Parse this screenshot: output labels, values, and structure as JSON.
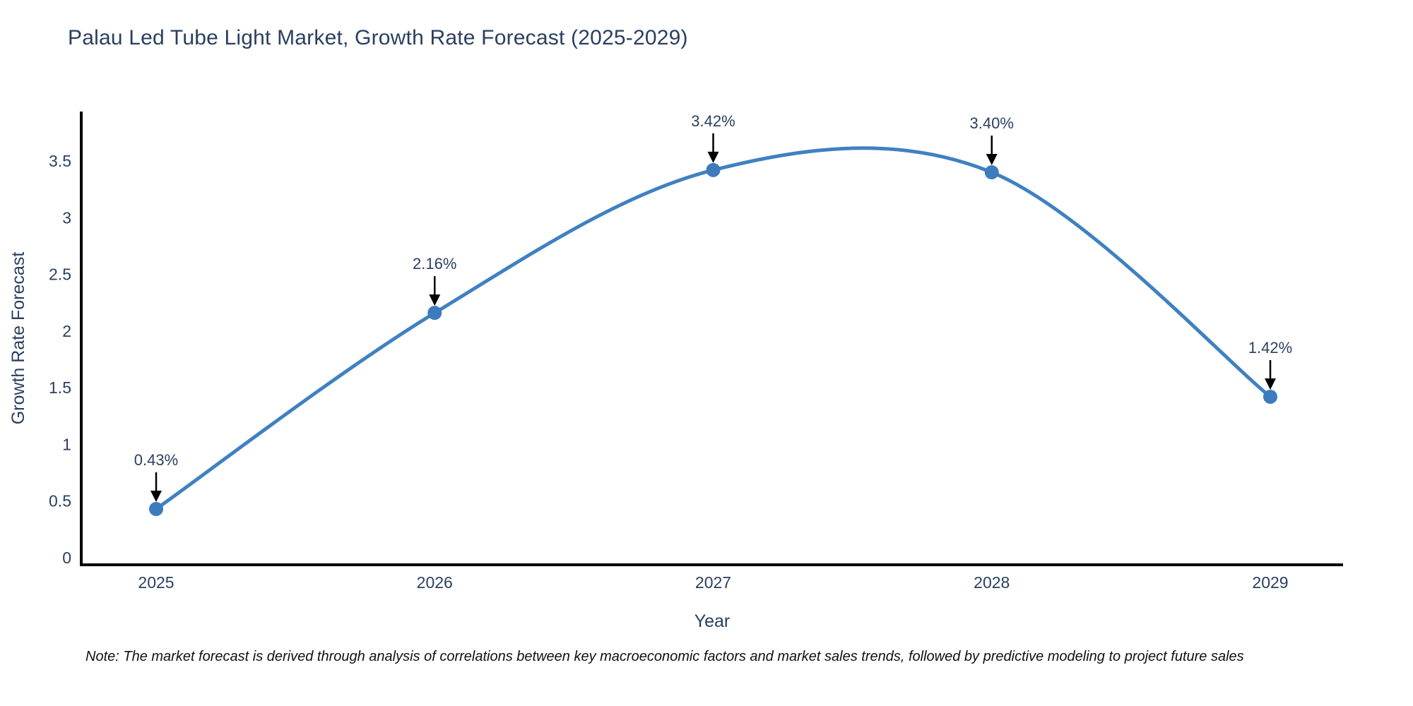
{
  "title": "Palau Led Tube Light Market, Growth Rate Forecast (2025-2029)",
  "note": "Note: The market forecast is derived through analysis of correlations between key macroeconomic factors and market sales trends, followed by predictive modeling to project future sales",
  "chart_data": {
    "type": "line",
    "line_shape": "spline",
    "title": "Palau Led Tube Light Market, Growth Rate Forecast (2025-2029)",
    "xlabel": "Year",
    "ylabel": "Growth Rate Forecast",
    "x": [
      2025,
      2026,
      2027,
      2028,
      2029
    ],
    "values": [
      0.43,
      2.16,
      3.42,
      3.4,
      1.42
    ],
    "point_labels": [
      "0.43%",
      "2.16%",
      "3.42%",
      "3.40%",
      "1.42%"
    ],
    "xtick_labels": [
      "2025",
      "2026",
      "2027",
      "2028",
      "2029"
    ],
    "ytick_labels": [
      "0",
      "0.5",
      "1",
      "1.5",
      "2",
      "2.5",
      "3",
      "3.5"
    ],
    "ytick_values": [
      0,
      0.5,
      1,
      1.5,
      2,
      2.5,
      3,
      3.5
    ],
    "ylim": [
      0,
      3.92
    ],
    "grid": false,
    "legend": "none",
    "annotations_have_arrows": true,
    "colors": {
      "line": "#3f81c1",
      "marker": "#3c7cbd",
      "axis": "#000000",
      "tick_text": "#2a3f5f",
      "axis_title_text": "#2a3f5f",
      "annotation_text": "#2a3f5f",
      "annotation_arrow": "#000000"
    }
  }
}
